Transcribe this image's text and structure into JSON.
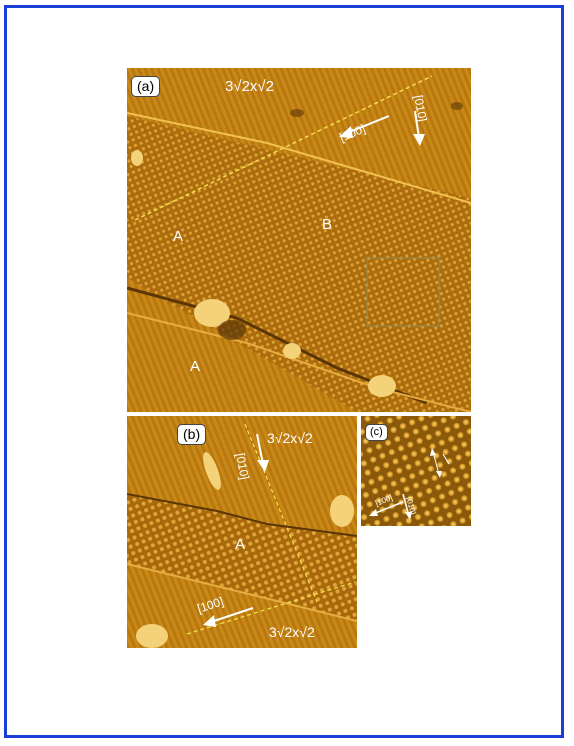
{
  "figure": {
    "panel_a": {
      "label": "(a)",
      "reconstruction": "3√2x√2",
      "dir_100": "[100]",
      "dir_010": "[010]",
      "region_a_top": "A",
      "region_b": "B",
      "region_a_bottom": "A"
    },
    "panel_b": {
      "label": "(b)",
      "reconstruction_top": "3√2x√2",
      "dir_010": "[010]",
      "region_a": "A",
      "dir_100": "[100]",
      "reconstruction_bottom": "3√2x√2"
    },
    "panel_c": {
      "label": "(c)",
      "dir_100": "[100]",
      "dir_010": "[010]"
    },
    "colors": {
      "border": "#1a3fd6",
      "surface_mid": "#b8780f",
      "surface_dark": "#8a5a0a",
      "surface_light": "#d89a2a",
      "guide_line": "#f2e04a"
    }
  }
}
